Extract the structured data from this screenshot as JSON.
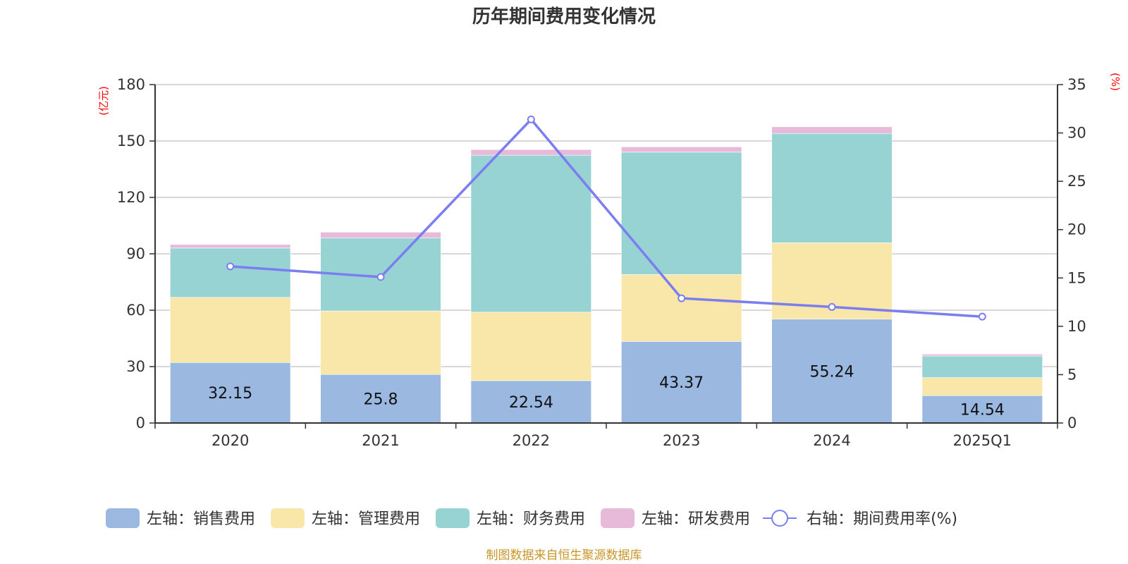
{
  "chart_data": {
    "type": "bar",
    "subtype": "stacked-bar-with-line",
    "title": "历年期间费用变化情况",
    "categories": [
      "2020",
      "2021",
      "2022",
      "2023",
      "2024",
      "2025Q1"
    ],
    "left_axis": {
      "unit_label": "(亿元)",
      "ylim": [
        0,
        180
      ],
      "ticks": [
        0,
        30,
        60,
        90,
        120,
        150,
        180
      ]
    },
    "right_axis": {
      "unit_label": "(%)",
      "ylim": [
        0,
        35
      ],
      "ticks": [
        0,
        5,
        10,
        15,
        20,
        25,
        30,
        35
      ]
    },
    "series": [
      {
        "name": "左轴：销售费用",
        "axis": "left",
        "kind": "bar",
        "color": "#9bb8e1",
        "values": [
          32.15,
          25.8,
          22.54,
          43.37,
          55.24,
          14.54
        ],
        "show_labels": true
      },
      {
        "name": "左轴：管理费用",
        "axis": "left",
        "kind": "bar",
        "color": "#f8e7a9",
        "values": [
          34.7,
          33.8,
          36.4,
          35.6,
          40.6,
          9.6
        ],
        "show_labels": false
      },
      {
        "name": "左轴：财务费用",
        "axis": "left",
        "kind": "bar",
        "color": "#98d3d4",
        "values": [
          26.2,
          38.8,
          83.5,
          65.1,
          58.2,
          11.5
        ],
        "show_labels": false
      },
      {
        "name": "左轴：研发费用",
        "axis": "left",
        "kind": "bar",
        "color": "#e8bad9",
        "values": [
          1.9,
          3.1,
          3.0,
          2.8,
          3.5,
          1.0
        ],
        "show_labels": false
      },
      {
        "name": "右轴：期间费用率(%)",
        "axis": "right",
        "kind": "line",
        "color": "#7b7ef0",
        "values": [
          16.2,
          15.1,
          31.4,
          12.9,
          12.0,
          11.0
        ],
        "show_labels": false
      }
    ],
    "grid": true,
    "legend_position": "bottom"
  },
  "source_note": "制图数据来自恒生聚源数据库"
}
